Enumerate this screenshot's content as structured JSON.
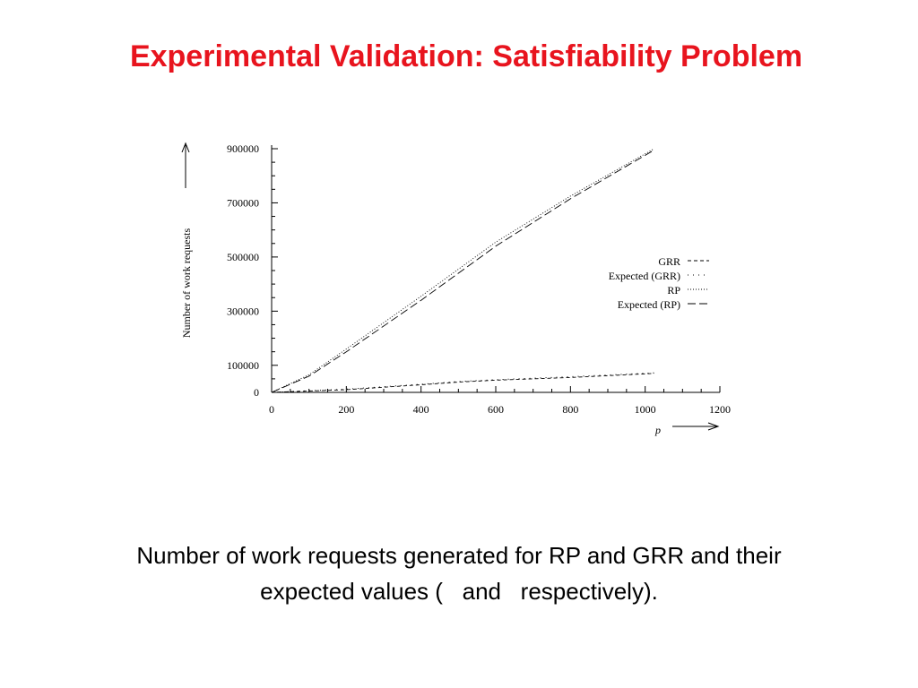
{
  "slide": {
    "title": "Experimental Validation: Satisfiability Problem",
    "title_color": "#e8141e",
    "caption_line1": "Number of work requests generated for RP and GRR and their",
    "caption_line2": "expected values (   and   respectively)."
  },
  "chart_data": {
    "type": "line",
    "title": "",
    "xlabel": "p",
    "ylabel": "Number of work requests",
    "xlim": [
      0,
      1200
    ],
    "ylim": [
      0,
      900000
    ],
    "xticks": [
      0,
      200,
      400,
      600,
      800,
      1000,
      1200
    ],
    "xtick_labels": [
      "0",
      "200",
      "400",
      "600",
      "800",
      "1000",
      "1200"
    ],
    "yticks": [
      0,
      100000,
      300000,
      500000,
      700000,
      900000
    ],
    "ytick_labels": [
      "0",
      "100000",
      "300000",
      "500000",
      "700000",
      "900000"
    ],
    "grid": false,
    "legend_position": "right",
    "series": [
      {
        "name": "GRR",
        "style": "dashed",
        "x": [
          0,
          200,
          400,
          500,
          600,
          800,
          1024
        ],
        "y": [
          0,
          10000,
          28000,
          38000,
          45000,
          55000,
          70000
        ]
      },
      {
        "name": "Expected (GRR)",
        "style": "sparse-dotted",
        "x": [
          0,
          200,
          400,
          500,
          600,
          800,
          1024
        ],
        "y": [
          0,
          12000,
          30000,
          40000,
          47000,
          58000,
          72000
        ]
      },
      {
        "name": "RP",
        "style": "dotted",
        "x": [
          0,
          100,
          200,
          400,
          600,
          800,
          1024
        ],
        "y": [
          0,
          65000,
          160000,
          355000,
          555000,
          725000,
          900000
        ]
      },
      {
        "name": "Expected (RP)",
        "style": "long-dashed",
        "x": [
          0,
          100,
          200,
          400,
          600,
          800,
          1024
        ],
        "y": [
          0,
          60000,
          150000,
          340000,
          540000,
          715000,
          895000
        ]
      }
    ]
  }
}
